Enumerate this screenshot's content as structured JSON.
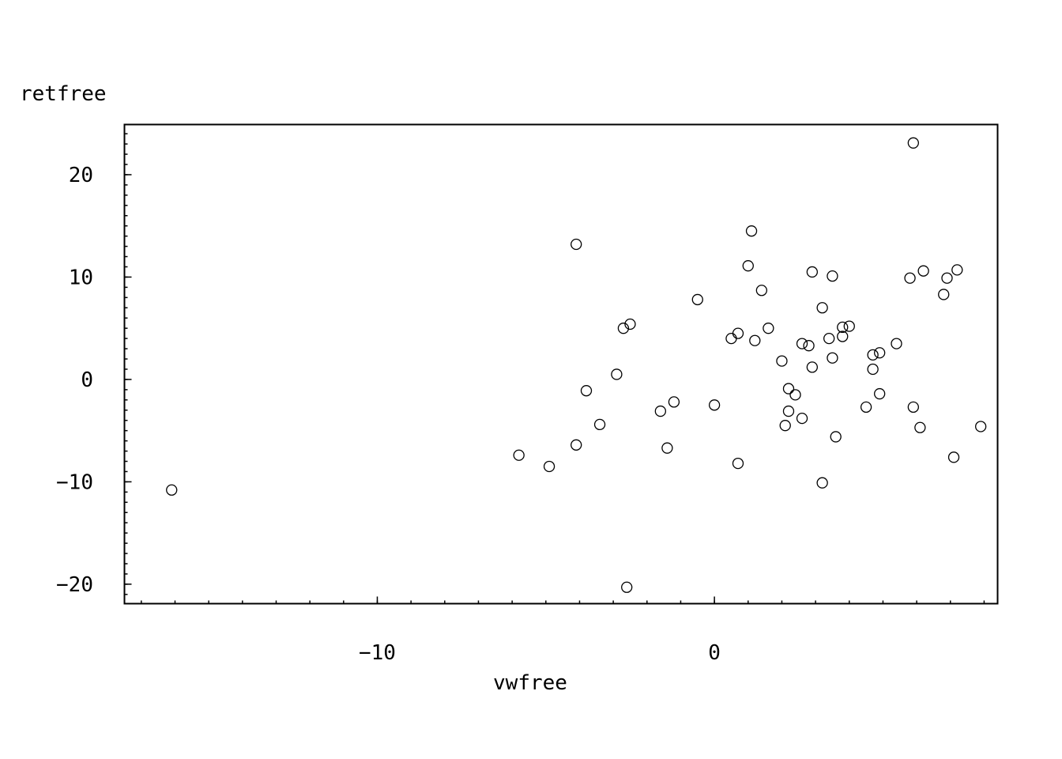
{
  "chart_data": {
    "type": "scatter",
    "xlabel": "vwfree",
    "ylabel": "retfree",
    "xlim": [
      -17.5,
      8.4
    ],
    "ylim": [
      -21.9,
      24.9
    ],
    "xticks": [
      -10,
      0
    ],
    "yticks": [
      -20,
      -10,
      0,
      10,
      20
    ],
    "marker": "open-circle",
    "grid": false,
    "points": [
      {
        "x": -16.1,
        "y": -10.8
      },
      {
        "x": -5.8,
        "y": -7.4
      },
      {
        "x": -4.9,
        "y": -8.5
      },
      {
        "x": -4.1,
        "y": 13.2
      },
      {
        "x": -4.1,
        "y": -6.4
      },
      {
        "x": -3.8,
        "y": -1.1
      },
      {
        "x": -3.4,
        "y": -4.4
      },
      {
        "x": -2.9,
        "y": 0.5
      },
      {
        "x": -2.7,
        "y": 5.0
      },
      {
        "x": -2.6,
        "y": -20.3
      },
      {
        "x": -2.5,
        "y": 5.4
      },
      {
        "x": -1.6,
        "y": -3.1
      },
      {
        "x": -1.4,
        "y": -6.7
      },
      {
        "x": -1.2,
        "y": -2.2
      },
      {
        "x": -0.5,
        "y": 7.8
      },
      {
        "x": 0.0,
        "y": -2.5
      },
      {
        "x": 0.5,
        "y": 4.0
      },
      {
        "x": 0.7,
        "y": 4.5
      },
      {
        "x": 0.7,
        "y": -8.2
      },
      {
        "x": 1.0,
        "y": 11.1
      },
      {
        "x": 1.1,
        "y": 14.5
      },
      {
        "x": 1.2,
        "y": 3.8
      },
      {
        "x": 1.4,
        "y": 8.7
      },
      {
        "x": 1.6,
        "y": 5.0
      },
      {
        "x": 2.0,
        "y": 1.8
      },
      {
        "x": 2.1,
        "y": -4.5
      },
      {
        "x": 2.2,
        "y": -0.9
      },
      {
        "x": 2.2,
        "y": -3.1
      },
      {
        "x": 2.4,
        "y": -1.5
      },
      {
        "x": 2.6,
        "y": -3.8
      },
      {
        "x": 2.6,
        "y": 3.5
      },
      {
        "x": 2.8,
        "y": 3.3
      },
      {
        "x": 2.9,
        "y": 1.2
      },
      {
        "x": 2.9,
        "y": 10.5
      },
      {
        "x": 3.2,
        "y": 7.0
      },
      {
        "x": 3.2,
        "y": -10.1
      },
      {
        "x": 3.4,
        "y": 4.0
      },
      {
        "x": 3.5,
        "y": 2.1
      },
      {
        "x": 3.5,
        "y": 10.1
      },
      {
        "x": 3.6,
        "y": -5.6
      },
      {
        "x": 3.8,
        "y": 5.1
      },
      {
        "x": 3.8,
        "y": 4.2
      },
      {
        "x": 4.0,
        "y": 5.2
      },
      {
        "x": 4.5,
        "y": -2.7
      },
      {
        "x": 4.7,
        "y": 2.4
      },
      {
        "x": 4.7,
        "y": 1.0
      },
      {
        "x": 4.9,
        "y": 2.6
      },
      {
        "x": 4.9,
        "y": -1.4
      },
      {
        "x": 5.4,
        "y": 3.5
      },
      {
        "x": 5.8,
        "y": 9.9
      },
      {
        "x": 5.9,
        "y": 23.1
      },
      {
        "x": 5.9,
        "y": -2.7
      },
      {
        "x": 6.1,
        "y": -4.7
      },
      {
        "x": 6.2,
        "y": 10.6
      },
      {
        "x": 6.8,
        "y": 8.3
      },
      {
        "x": 6.9,
        "y": 9.9
      },
      {
        "x": 7.1,
        "y": -7.6
      },
      {
        "x": 7.2,
        "y": 10.7
      },
      {
        "x": 7.9,
        "y": -4.6
      }
    ]
  }
}
